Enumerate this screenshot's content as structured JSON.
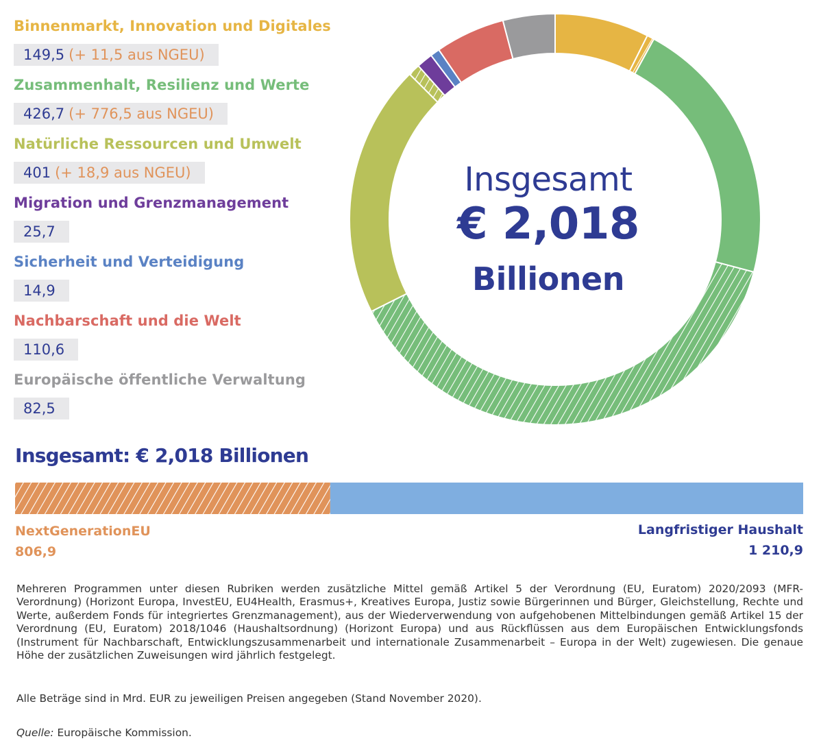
{
  "legend": {
    "items": [
      {
        "title": "Binnenmarkt, Innovation und Digitales",
        "value": "149,5",
        "ngeu": "(+ 11,5 aus NGEU)",
        "color": "#e6b544"
      },
      {
        "title": "Zusammenhalt, Resilienz und Werte",
        "value": "426,7",
        "ngeu": "(+ 776,5 aus NGEU)",
        "color": "#76bd7a"
      },
      {
        "title": "Natürliche Ressourcen und Umwelt",
        "value": "401",
        "ngeu": "(+ 18,9 aus NGEU)",
        "color": "#b8c15a"
      },
      {
        "title": "Migration und Grenzmanagement",
        "value": "25,7",
        "ngeu": "",
        "color": "#6e3d9b"
      },
      {
        "title": "Sicherheit und Verteidigung",
        "value": "14,9",
        "ngeu": "",
        "color": "#5a82c4"
      },
      {
        "title": "Nachbarschaft und die Welt",
        "value": "110,6",
        "ngeu": "",
        "color": "#d96a63"
      },
      {
        "title": "Europäische öffentliche Verwaltung",
        "value": "82,5",
        "ngeu": "",
        "color": "#9a9a9c"
      }
    ]
  },
  "center": {
    "line1": "Insgesamt",
    "line2": "€ 2,018",
    "line3": "Billionen"
  },
  "total_heading": "Insgesamt: € 2,018 Billionen",
  "bar": {
    "ngeu_label": "NextGenerationEU",
    "ngeu_value": "806,9",
    "mfr_label": "Langfristiger Haushalt",
    "mfr_value": "1 210,9",
    "ngeu_color": "#e0935a",
    "mfr_color": "#7faee0"
  },
  "notes": {
    "note1": "Mehreren Programmen unter diesen Rubriken werden zusätzliche Mittel gemäß Artikel 5 der Verordnung (EU, Euratom) 2020/2093 (MFR-Verordnung) (Horizont Europa, InvestEU, EU4Health, Erasmus+, Kreatives Europa, Justiz sowie Bürgerinnen und Bürger, Gleichstellung, Rechte und Werte, außerdem Fonds für integriertes Grenzmanagement), aus der Wiederverwendung von aufgehobenen Mittelbindungen gemäß Artikel 15 der Verordnung (EU, Euratom) 2018/1046 (Haushaltsordnung) (Horizont Europa) und aus Rückflüssen aus dem Europäischen Entwicklungsfonds (Instrument für Nachbarschaft, Entwicklungszusammenarbeit und internationale Zusammenarbeit – Europa in der Welt) zugewiesen. Die genaue Höhe der zusätzlichen Zuweisungen wird jährlich festgelegt.",
    "note2": "Alle Beträge sind in Mrd. EUR zu jeweiligen Preisen angegeben (Stand November 2020).",
    "source_label": "Quelle:",
    "source_text": " Europäische Kommission."
  },
  "chart_data": [
    {
      "type": "pie",
      "title": "",
      "series": [
        {
          "name": "Binnenmarkt, Innovation und Digitales",
          "mfr": 149.5,
          "ngeu": 11.5,
          "color": "#e6b544"
        },
        {
          "name": "Zusammenhalt, Resilienz und Werte",
          "mfr": 426.7,
          "ngeu": 776.5,
          "color": "#76bd7a"
        },
        {
          "name": "Natürliche Ressourcen und Umwelt",
          "mfr": 401,
          "ngeu": 18.9,
          "color": "#b8c15a"
        },
        {
          "name": "Migration und Grenzmanagement",
          "mfr": 25.7,
          "ngeu": 0,
          "color": "#6e3d9b"
        },
        {
          "name": "Sicherheit und Verteidigung",
          "mfr": 14.9,
          "ngeu": 0,
          "color": "#5a82c4"
        },
        {
          "name": "Nachbarschaft und die Welt",
          "mfr": 110.6,
          "ngeu": 0,
          "color": "#d96a63"
        },
        {
          "name": "Europäische öffentliche Verwaltung",
          "mfr": 82.5,
          "ngeu": 0,
          "color": "#9a9a9c"
        }
      ]
    },
    {
      "type": "bar",
      "title": "Insgesamt: € 2,018 Billionen",
      "categories": [
        "NextGenerationEU",
        "Langfristiger Haushalt"
      ],
      "values": [
        806.9,
        1210.9
      ]
    }
  ]
}
